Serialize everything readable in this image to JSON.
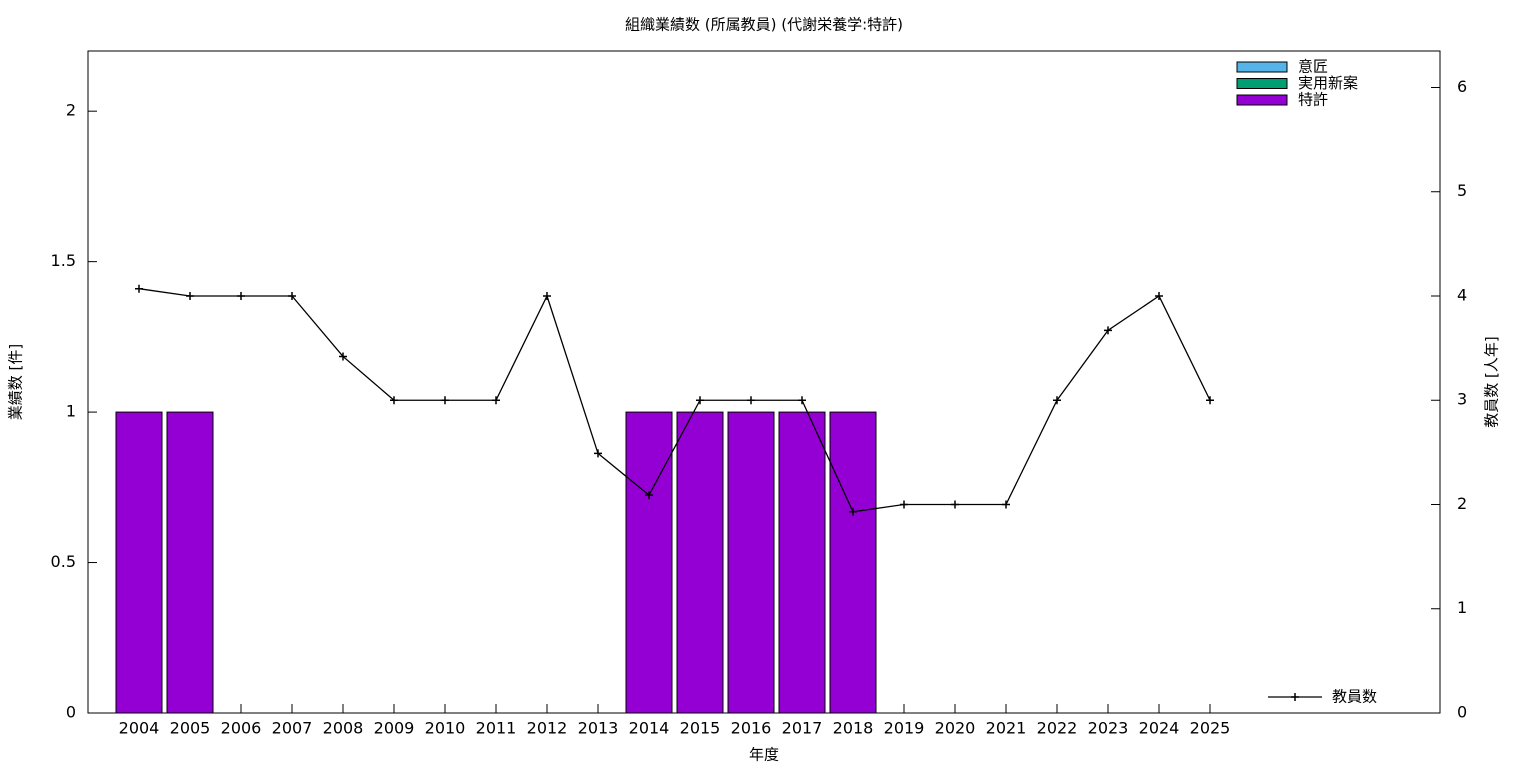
{
  "chart_data": {
    "type": "bar",
    "stacked": true,
    "title": "組織業績数 (所属教員) (代謝栄養学:特許)",
    "xlabel": "年度",
    "ylabel": "業績数 [件]",
    "y2label": "教員数 [人年]",
    "categories": [
      "2004",
      "2005",
      "2006",
      "2007",
      "2008",
      "2009",
      "2010",
      "2011",
      "2012",
      "2013",
      "2014",
      "2015",
      "2016",
      "2017",
      "2018",
      "2019",
      "2020",
      "2021",
      "2022",
      "2023",
      "2024",
      "2025"
    ],
    "series": [
      {
        "name": "意匠",
        "color": "#56b4e9",
        "values": [
          0,
          0,
          0,
          0,
          0,
          0,
          0,
          0,
          0,
          0,
          0,
          0,
          0,
          0,
          0,
          0,
          0,
          0,
          0,
          0,
          0,
          0
        ]
      },
      {
        "name": "実用新案",
        "color": "#009e73",
        "values": [
          0,
          0,
          0,
          0,
          0,
          0,
          0,
          0,
          0,
          0,
          0,
          0,
          0,
          0,
          0,
          0,
          0,
          0,
          0,
          0,
          0,
          0
        ]
      },
      {
        "name": "特許",
        "color": "#9400d3",
        "values": [
          1,
          1,
          0,
          0,
          0,
          0,
          0,
          0,
          0,
          0,
          1,
          1,
          1,
          1,
          1,
          0,
          0,
          0,
          0,
          0,
          0,
          0
        ]
      },
      {
        "name": "教員数",
        "type": "line",
        "axis": "y2",
        "color": "#000000",
        "legend": "bottom right",
        "values": [
          4.07,
          4,
          4,
          4,
          3.42,
          3,
          3,
          3,
          4,
          2.49,
          2.09,
          3,
          3,
          3,
          1.93,
          2,
          2,
          2,
          3,
          3.67,
          4,
          3
        ]
      }
    ],
    "ylim": [
      0,
      2.2
    ],
    "yticks": [
      0,
      0.5,
      1,
      1.5,
      2
    ],
    "y2lim": [
      0,
      6.35
    ],
    "y2ticks": [
      0,
      1,
      2,
      3,
      4,
      5,
      6
    ],
    "legend": "top right",
    "grid": false
  }
}
